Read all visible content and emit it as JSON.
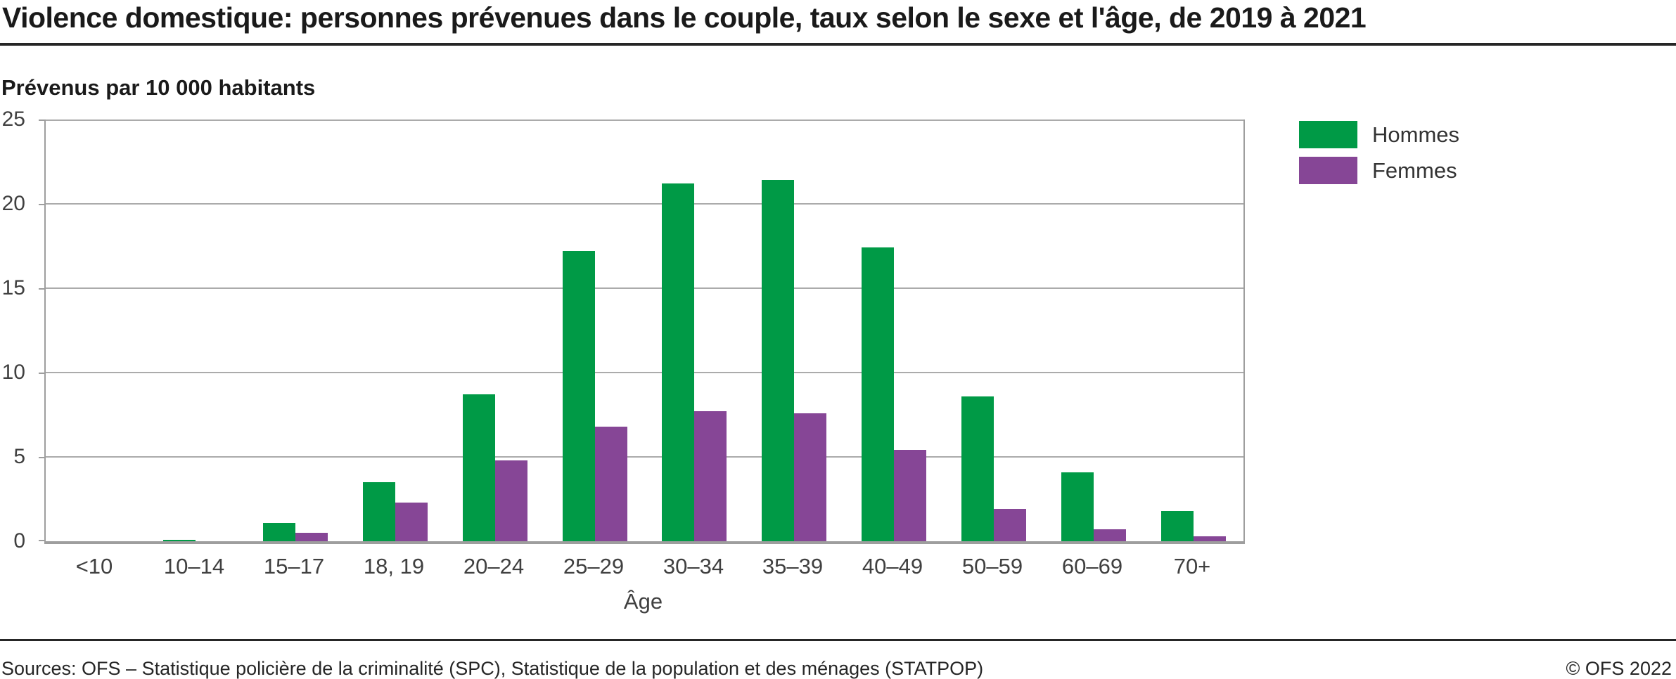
{
  "header": {
    "title": "Violence domestique: personnes prévenues dans le couple, taux selon le sexe et l'âge, de 2019 à 2021"
  },
  "chart": {
    "unit_label": "Prévenus par 10 000 habitants",
    "xlabel": "Âge"
  },
  "chart_data": {
    "type": "bar",
    "title": "Violence domestique: personnes prévenues dans le couple, taux selon le sexe et l'âge, de 2019 à 2021",
    "ylabel": "Prévenus par 10 000 habitants",
    "xlabel": "Âge",
    "categories": [
      "<10",
      "10–14",
      "15–17",
      "18, 19",
      "20–24",
      "25–29",
      "30–34",
      "35–39",
      "40–49",
      "50–59",
      "60–69",
      "70+"
    ],
    "series": [
      {
        "name": "Hommes",
        "color": "#009A46",
        "values": [
          0,
          0.1,
          1.1,
          3.5,
          8.7,
          17.2,
          21.2,
          21.4,
          17.4,
          8.6,
          4.1,
          1.8
        ]
      },
      {
        "name": "Femmes",
        "color": "#864696",
        "values": [
          0,
          0,
          0.5,
          2.3,
          4.8,
          6.8,
          7.7,
          7.6,
          5.4,
          1.9,
          0.7,
          0.3
        ]
      }
    ],
    "ylim": [
      0,
      25
    ],
    "yticks": [
      0,
      5,
      10,
      15,
      20,
      25
    ],
    "grid": true,
    "legend_position": "top-right",
    "colors": {
      "gridline": "#ababab",
      "axis": "#9e9e9e",
      "rule": "#262626"
    }
  },
  "footer": {
    "sources": "Sources: OFS – Statistique policière de la criminalité (SPC), Statistique de la population et des ménages (STATPOP)",
    "copyright": "© OFS 2022"
  }
}
